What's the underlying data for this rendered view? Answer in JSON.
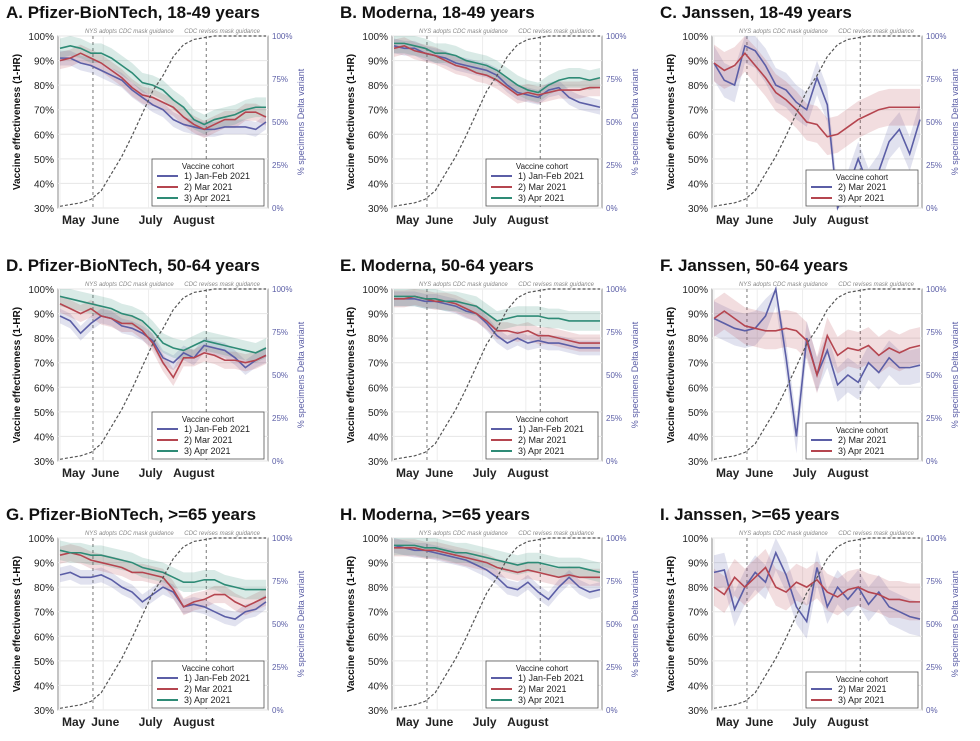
{
  "figure": {
    "left_axis_label": "Vaccine effectiveness (1-HR)",
    "right_axis_label": "% specimens Delta variant",
    "legend_title": "Vaccine cohort",
    "annotations": [
      "NYS adopts CDC mask guidance",
      "CDC revises mask guidance"
    ],
    "x_ticks": [
      "May",
      "June",
      "July",
      "August"
    ],
    "y_ticks_left": [
      "30%",
      "40%",
      "50%",
      "60%",
      "70%",
      "80%",
      "90%",
      "100%"
    ],
    "y_ticks_right": [
      "0%",
      "25%",
      "50%",
      "75%",
      "100%"
    ],
    "cohort_colors": {
      "c1": "#5b5ea6",
      "c2": "#b5454f",
      "c3": "#2e8b76",
      "delta": "#555555"
    }
  },
  "chart_data": [
    {
      "type": "line",
      "title": "A. Pfizer-BioNTech, 18-49 years",
      "series": [
        {
          "name": "1) Jan-Feb 2021",
          "color": "#5b5ea6",
          "values": [
            91,
            91,
            89,
            88,
            86,
            84,
            82,
            78,
            75,
            72,
            70,
            66,
            64,
            63,
            62,
            62,
            63,
            63,
            63,
            62,
            65
          ]
        },
        {
          "name": "2) Mar 2021",
          "color": "#b5454f",
          "values": [
            90,
            91,
            93,
            91,
            89,
            86,
            83,
            79,
            76,
            75,
            73,
            71,
            67,
            64,
            62,
            64,
            66,
            66,
            69,
            69,
            67
          ]
        },
        {
          "name": "3) Apr 2021",
          "color": "#2e8b76",
          "values": [
            95,
            96,
            95,
            93,
            93,
            91,
            88,
            85,
            81,
            80,
            78,
            74,
            71,
            66,
            64,
            66,
            67,
            68,
            70,
            71,
            71
          ]
        }
      ],
      "delta": [
        1,
        2,
        3,
        5,
        10,
        20,
        30,
        42,
        55,
        68,
        77,
        88,
        95,
        98,
        99,
        100,
        100,
        100,
        100,
        100,
        100
      ],
      "ylim": [
        30,
        100
      ],
      "xlim": [
        0,
        20
      ]
    },
    {
      "type": "line",
      "title": "B. Moderna, 18-49 years",
      "series": [
        {
          "name": "1) Jan-Feb 2021",
          "color": "#5b5ea6",
          "values": [
            96,
            95,
            95,
            93,
            92,
            91,
            89,
            88,
            87,
            86,
            84,
            80,
            77,
            76,
            75,
            78,
            79,
            75,
            73,
            72,
            71
          ]
        },
        {
          "name": "2) Mar 2021",
          "color": "#b5454f",
          "values": [
            95,
            96,
            94,
            93,
            92,
            90,
            88,
            87,
            85,
            84,
            82,
            79,
            76,
            77,
            76,
            77,
            78,
            78,
            78,
            79,
            79
          ]
        },
        {
          "name": "3) Apr 2021",
          "color": "#2e8b76",
          "values": [
            97,
            97,
            96,
            95,
            93,
            93,
            92,
            90,
            89,
            88,
            86,
            83,
            80,
            78,
            77,
            80,
            82,
            83,
            83,
            82,
            83
          ]
        }
      ],
      "delta": [
        1,
        2,
        3,
        5,
        10,
        20,
        30,
        42,
        55,
        68,
        77,
        88,
        95,
        98,
        99,
        100,
        100,
        100,
        100,
        100,
        100
      ],
      "ylim": [
        30,
        100
      ],
      "xlim": [
        0,
        20
      ]
    },
    {
      "type": "line",
      "title": "C. Janssen, 18-49 years",
      "series": [
        {
          "name": "2) Mar 2021",
          "color": "#5b5ea6",
          "values": [
            89,
            82,
            80,
            96,
            94,
            88,
            80,
            78,
            73,
            70,
            83,
            72,
            30,
            38,
            50,
            39,
            45,
            57,
            62,
            52,
            66
          ]
        },
        {
          "name": "3) Apr 2021",
          "color": "#b5454f",
          "values": [
            89,
            86,
            88,
            93,
            88,
            83,
            77,
            74,
            70,
            65,
            64,
            59,
            60,
            63,
            66,
            68,
            70,
            71,
            71,
            71,
            71
          ]
        }
      ],
      "delta": [
        1,
        2,
        3,
        5,
        10,
        20,
        30,
        42,
        55,
        68,
        77,
        88,
        95,
        98,
        99,
        100,
        100,
        100,
        100,
        100,
        100
      ],
      "ylim": [
        30,
        100
      ],
      "xlim": [
        0,
        20
      ]
    },
    {
      "type": "line",
      "title": "D. Pfizer-BioNTech, 50-64 years",
      "series": [
        {
          "name": "1) Jan-Feb 2021",
          "color": "#5b5ea6",
          "values": [
            89,
            87,
            82,
            86,
            89,
            88,
            85,
            84,
            82,
            79,
            72,
            70,
            74,
            72,
            77,
            76,
            75,
            72,
            68,
            71,
            73
          ]
        },
        {
          "name": "2) Mar 2021",
          "color": "#b5454f",
          "values": [
            94,
            92,
            90,
            92,
            89,
            88,
            86,
            86,
            83,
            78,
            70,
            64,
            72,
            72,
            74,
            73,
            71,
            71,
            70,
            71,
            73
          ]
        },
        {
          "name": "3) Apr 2021",
          "color": "#2e8b76",
          "values": [
            97,
            96,
            95,
            94,
            93,
            92,
            90,
            89,
            87,
            83,
            78,
            76,
            75,
            77,
            79,
            78,
            77,
            76,
            75,
            74,
            76
          ]
        }
      ],
      "delta": [
        1,
        2,
        3,
        5,
        10,
        20,
        30,
        42,
        55,
        68,
        77,
        88,
        95,
        98,
        99,
        100,
        100,
        100,
        100,
        100,
        100
      ],
      "ylim": [
        30,
        100
      ],
      "xlim": [
        0,
        20
      ]
    },
    {
      "type": "line",
      "title": "E. Moderna, 50-64 years",
      "series": [
        {
          "name": "1) Jan-Feb 2021",
          "color": "#5b5ea6",
          "values": [
            96,
            96,
            96,
            95,
            95,
            94,
            93,
            91,
            90,
            86,
            81,
            78,
            80,
            78,
            79,
            78,
            78,
            77,
            76,
            76,
            76
          ]
        },
        {
          "name": "2) Mar 2021",
          "color": "#b5454f",
          "values": [
            96,
            96,
            97,
            96,
            95,
            95,
            94,
            92,
            90,
            87,
            83,
            83,
            82,
            83,
            81,
            81,
            80,
            79,
            78,
            78,
            78
          ]
        },
        {
          "name": "3) Apr 2021",
          "color": "#2e8b76",
          "values": [
            97,
            97,
            97,
            96,
            96,
            95,
            95,
            94,
            93,
            90,
            87,
            88,
            89,
            89,
            89,
            88,
            88,
            87,
            87,
            87,
            87
          ]
        }
      ],
      "delta": [
        1,
        2,
        3,
        5,
        10,
        20,
        30,
        42,
        55,
        68,
        77,
        88,
        95,
        98,
        99,
        100,
        100,
        100,
        100,
        100,
        100
      ],
      "ylim": [
        30,
        100
      ],
      "xlim": [
        0,
        20
      ]
    },
    {
      "type": "line",
      "title": "F. Janssen, 50-64 years",
      "series": [
        {
          "name": "2) Mar 2021",
          "color": "#5b5ea6",
          "values": [
            88,
            86,
            84,
            83,
            84,
            89,
            100,
            72,
            40,
            80,
            65,
            75,
            61,
            65,
            62,
            70,
            66,
            72,
            68,
            68,
            69
          ]
        },
        {
          "name": "3) Apr 2021",
          "color": "#b5454f",
          "values": [
            88,
            91,
            88,
            85,
            84,
            83,
            83,
            84,
            83,
            79,
            65,
            81,
            73,
            76,
            75,
            77,
            73,
            76,
            74,
            76,
            77
          ]
        }
      ],
      "delta": [
        1,
        2,
        3,
        5,
        10,
        20,
        30,
        42,
        55,
        68,
        77,
        88,
        95,
        98,
        99,
        100,
        100,
        100,
        100,
        100,
        100
      ],
      "ylim": [
        30,
        100
      ],
      "xlim": [
        0,
        20
      ]
    },
    {
      "type": "line",
      "title": "G. Pfizer-BioNTech, >=65 years",
      "series": [
        {
          "name": "1) Jan-Feb 2021",
          "color": "#5b5ea6",
          "values": [
            85,
            86,
            84,
            84,
            85,
            83,
            80,
            78,
            74,
            77,
            80,
            78,
            72,
            73,
            72,
            70,
            68,
            67,
            70,
            71,
            74
          ]
        },
        {
          "name": "2) Mar 2021",
          "color": "#b5454f",
          "values": [
            93,
            94,
            93,
            91,
            90,
            89,
            88,
            86,
            86,
            85,
            84,
            79,
            72,
            74,
            75,
            77,
            77,
            74,
            72,
            74,
            76
          ]
        },
        {
          "name": "3) Apr 2021",
          "color": "#2e8b76",
          "values": [
            95,
            94,
            94,
            93,
            93,
            92,
            91,
            90,
            88,
            87,
            86,
            84,
            82,
            82,
            83,
            83,
            81,
            80,
            79,
            79,
            79
          ]
        }
      ],
      "delta": [
        1,
        2,
        3,
        5,
        10,
        20,
        30,
        42,
        55,
        68,
        77,
        88,
        95,
        98,
        99,
        100,
        100,
        100,
        100,
        100,
        100
      ],
      "ylim": [
        30,
        100
      ],
      "xlim": [
        0,
        20
      ]
    },
    {
      "type": "line",
      "title": "H. Moderna, >=65 years",
      "series": [
        {
          "name": "1) Jan-Feb 2021",
          "color": "#5b5ea6",
          "values": [
            97,
            96,
            95,
            95,
            94,
            93,
            92,
            91,
            89,
            87,
            84,
            80,
            79,
            82,
            78,
            75,
            80,
            84,
            80,
            78,
            79
          ]
        },
        {
          "name": "2) Mar 2021",
          "color": "#b5454f",
          "values": [
            96,
            96,
            96,
            95,
            95,
            94,
            93,
            92,
            91,
            90,
            88,
            87,
            86,
            87,
            86,
            85,
            84,
            85,
            84,
            84,
            84
          ]
        },
        {
          "name": "3) Apr 2021",
          "color": "#2e8b76",
          "values": [
            97,
            97,
            97,
            96,
            96,
            95,
            94,
            94,
            93,
            92,
            91,
            90,
            89,
            90,
            90,
            89,
            88,
            88,
            88,
            87,
            86
          ]
        }
      ],
      "delta": [
        1,
        2,
        3,
        5,
        10,
        20,
        30,
        42,
        55,
        68,
        77,
        88,
        95,
        98,
        99,
        100,
        100,
        100,
        100,
        100,
        100
      ],
      "ylim": [
        30,
        100
      ],
      "xlim": [
        0,
        20
      ]
    },
    {
      "type": "line",
      "title": "I. Janssen, >=65 years",
      "series": [
        {
          "name": "2) Mar 2021",
          "color": "#5b5ea6",
          "values": [
            86,
            87,
            71,
            80,
            86,
            82,
            94,
            85,
            72,
            66,
            88,
            72,
            80,
            75,
            80,
            73,
            78,
            72,
            70,
            68,
            67
          ]
        },
        {
          "name": "3) Apr 2021",
          "color": "#b5454f",
          "values": [
            80,
            77,
            84,
            80,
            84,
            88,
            80,
            78,
            82,
            80,
            83,
            78,
            76,
            79,
            80,
            78,
            77,
            75,
            75,
            74,
            74
          ]
        }
      ],
      "delta": [
        1,
        2,
        3,
        5,
        10,
        20,
        30,
        42,
        55,
        68,
        77,
        88,
        95,
        98,
        99,
        100,
        100,
        100,
        100,
        100,
        100
      ],
      "ylim": [
        30,
        100
      ],
      "xlim": [
        0,
        20
      ]
    }
  ]
}
